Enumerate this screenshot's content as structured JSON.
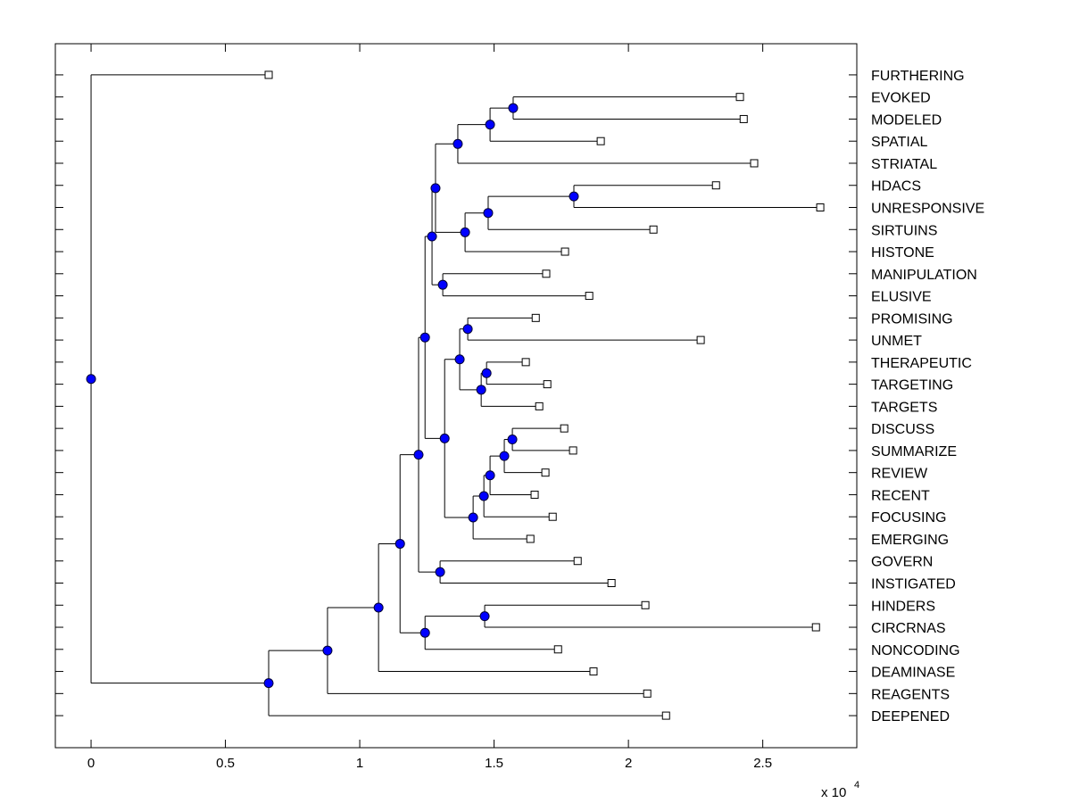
{
  "chart_data": {
    "type": "dendrogram",
    "orientation": "horizontal",
    "title": "",
    "xlabel": "",
    "ylabel": "",
    "x_multiplier_label": "x 10",
    "x_multiplier_exponent": "4",
    "xlim": [
      -0.133,
      2.85
    ],
    "ylim_rows": [
      -0.41,
      31.45
    ],
    "xticks": [
      0,
      0.5,
      1,
      1.5,
      2,
      2.5
    ],
    "xtick_labels": [
      "0",
      "0.5",
      "1",
      "1.5",
      "2",
      "2.5"
    ],
    "grid": false,
    "node_color": "#0000ff",
    "leaf_marker": "open-square",
    "leaves": [
      {
        "id": "FURTHERING",
        "label": "FURTHERING",
        "x": 0.661
      },
      {
        "id": "EVOKED",
        "label": "EVOKED",
        "x": 2.415
      },
      {
        "id": "MODELED",
        "label": "MODELED",
        "x": 2.429
      },
      {
        "id": "SPATIAL",
        "label": "SPATIAL",
        "x": 1.897
      },
      {
        "id": "STRIATAL",
        "label": "STRIATAL",
        "x": 2.468
      },
      {
        "id": "HDACS",
        "label": "HDACS",
        "x": 2.326
      },
      {
        "id": "UNRESPONSIVE",
        "label": "UNRESPONSIVE",
        "x": 2.714
      },
      {
        "id": "SIRTUINS",
        "label": "SIRTUINS",
        "x": 2.093
      },
      {
        "id": "HISTONE",
        "label": "HISTONE",
        "x": 1.764
      },
      {
        "id": "MANIPULATION",
        "label": "MANIPULATION",
        "x": 1.694
      },
      {
        "id": "ELUSIVE",
        "label": "ELUSIVE",
        "x": 1.854
      },
      {
        "id": "PROMISING",
        "label": "PROMISING",
        "x": 1.655
      },
      {
        "id": "UNMET",
        "label": "UNMET",
        "x": 2.269
      },
      {
        "id": "THERAPEUTIC",
        "label": "THERAPEUTIC",
        "x": 1.618
      },
      {
        "id": "TARGETING",
        "label": "TARGETING",
        "x": 1.698
      },
      {
        "id": "TARGETS",
        "label": "TARGETS",
        "x": 1.668
      },
      {
        "id": "DISCUSS",
        "label": "DISCUSS",
        "x": 1.761
      },
      {
        "id": "SUMMARIZE",
        "label": "SUMMARIZE",
        "x": 1.794
      },
      {
        "id": "REVIEW",
        "label": "REVIEW",
        "x": 1.691
      },
      {
        "id": "RECENT",
        "label": "RECENT",
        "x": 1.651
      },
      {
        "id": "FOCUSING",
        "label": "FOCUSING",
        "x": 1.718
      },
      {
        "id": "EMERGING",
        "label": "EMERGING",
        "x": 1.635
      },
      {
        "id": "GOVERN",
        "label": "GOVERN",
        "x": 1.811
      },
      {
        "id": "INSTIGATED",
        "label": "INSTIGATED",
        "x": 1.937
      },
      {
        "id": "HINDERS",
        "label": "HINDERS",
        "x": 2.063
      },
      {
        "id": "CIRCRNAS",
        "label": "CIRCRNAS",
        "x": 2.698
      },
      {
        "id": "NONCODING",
        "label": "NONCODING",
        "x": 1.738
      },
      {
        "id": "DEAMINASE",
        "label": "DEAMINASE",
        "x": 1.87
      },
      {
        "id": "REAGENTS",
        "label": "REAGENTS",
        "x": 2.07
      },
      {
        "id": "DEEPENED",
        "label": "DEEPENED",
        "x": 2.14
      }
    ],
    "nodes": [
      {
        "id": "n_evo_mod",
        "x": 1.571,
        "children": [
          "EVOKED",
          "MODELED"
        ]
      },
      {
        "id": "n_spatial",
        "x": 1.485,
        "children": [
          "n_evo_mod",
          "SPATIAL"
        ]
      },
      {
        "id": "n_striatal",
        "x": 1.365,
        "children": [
          "n_spatial",
          "STRIATAL"
        ]
      },
      {
        "id": "n_hdacs_unresp",
        "x": 1.797,
        "children": [
          "HDACS",
          "UNRESPONSIVE"
        ]
      },
      {
        "id": "n_sirtuins",
        "x": 1.478,
        "children": [
          "n_hdacs_unresp",
          "SIRTUINS"
        ]
      },
      {
        "id": "n_histone",
        "x": 1.392,
        "children": [
          "n_sirtuins",
          "HISTONE"
        ]
      },
      {
        "id": "n_top_a",
        "x": 1.282,
        "children": [
          "n_striatal",
          "n_histone"
        ]
      },
      {
        "id": "n_manip_elus",
        "x": 1.309,
        "children": [
          "MANIPULATION",
          "ELUSIVE"
        ]
      },
      {
        "id": "n_top_b",
        "x": 1.269,
        "children": [
          "n_top_a",
          "n_manip_elus"
        ]
      },
      {
        "id": "n_prom_unmet",
        "x": 1.402,
        "children": [
          "PROMISING",
          "UNMET"
        ]
      },
      {
        "id": "n_ther_targ",
        "x": 1.472,
        "children": [
          "THERAPEUTIC",
          "TARGETING"
        ]
      },
      {
        "id": "n_targets",
        "x": 1.452,
        "children": [
          "n_ther_targ",
          "TARGETS"
        ]
      },
      {
        "id": "n_mid_c",
        "x": 1.372,
        "children": [
          "n_prom_unmet",
          "n_targets"
        ]
      },
      {
        "id": "n_disc_summ",
        "x": 1.568,
        "children": [
          "DISCUSS",
          "SUMMARIZE"
        ]
      },
      {
        "id": "n_review",
        "x": 1.538,
        "children": [
          "n_disc_summ",
          "REVIEW"
        ]
      },
      {
        "id": "n_recent",
        "x": 1.485,
        "children": [
          "n_review",
          "RECENT"
        ]
      },
      {
        "id": "n_focusing",
        "x": 1.462,
        "children": [
          "n_recent",
          "FOCUSING"
        ]
      },
      {
        "id": "n_emerging",
        "x": 1.422,
        "children": [
          "n_focusing",
          "EMERGING"
        ]
      },
      {
        "id": "n_mid_d",
        "x": 1.316,
        "children": [
          "n_mid_c",
          "n_emerging"
        ]
      },
      {
        "id": "n_mid_e",
        "x": 1.243,
        "children": [
          "n_top_b",
          "n_mid_d"
        ]
      },
      {
        "id": "n_gov_inst",
        "x": 1.299,
        "children": [
          "GOVERN",
          "INSTIGATED"
        ]
      },
      {
        "id": "n_mid_f",
        "x": 1.219,
        "children": [
          "n_mid_e",
          "n_gov_inst"
        ]
      },
      {
        "id": "n_hind_circ",
        "x": 1.465,
        "children": [
          "HINDERS",
          "CIRCRNAS"
        ]
      },
      {
        "id": "n_noncoding",
        "x": 1.243,
        "children": [
          "n_hind_circ",
          "NONCODING"
        ]
      },
      {
        "id": "n_low_g",
        "x": 1.15,
        "children": [
          "n_mid_f",
          "n_noncoding"
        ]
      },
      {
        "id": "n_deaminase",
        "x": 1.07,
        "children": [
          "n_low_g",
          "DEAMINASE"
        ]
      },
      {
        "id": "n_reagents",
        "x": 0.88,
        "children": [
          "n_deaminase",
          "REAGENTS"
        ]
      },
      {
        "id": "n_deepened",
        "x": 0.661,
        "children": [
          "n_reagents",
          "DEEPENED"
        ]
      },
      {
        "id": "n_root",
        "x": 0.0,
        "children": [
          "FURTHERING",
          "n_deepened"
        ]
      }
    ]
  }
}
